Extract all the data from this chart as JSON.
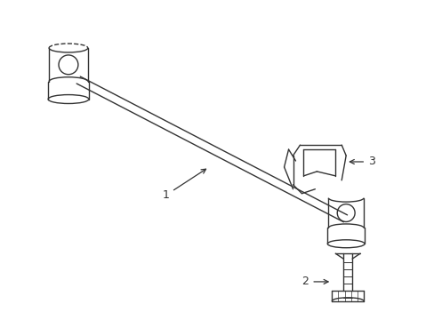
{
  "bg_color": "#ffffff",
  "line_color": "#333333",
  "fig_width": 4.89,
  "fig_height": 3.6,
  "dpi": 100,
  "label_1": "1",
  "label_2": "2",
  "label_3": "3"
}
